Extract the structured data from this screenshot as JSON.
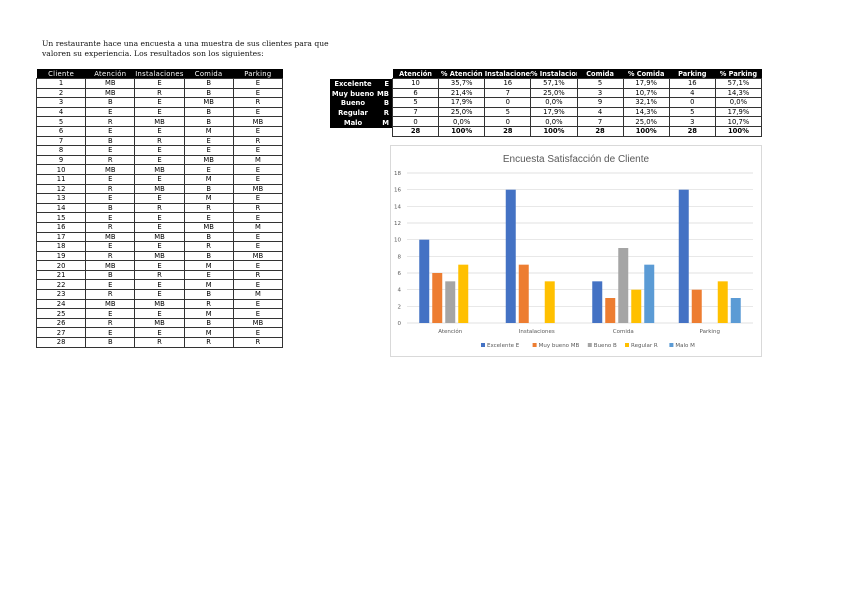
{
  "intro": "Un restaurante hace una encuesta a una muestra de sus clientes para que valoren su experiencia. Los resultados son los siguientes:",
  "survey": {
    "headers": [
      "Cliente",
      "Atención",
      "Instalaciones",
      "Comida",
      "Parking"
    ],
    "rows": [
      [
        "1",
        "MB",
        "E",
        "B",
        "E"
      ],
      [
        "2",
        "MB",
        "R",
        "B",
        "E"
      ],
      [
        "3",
        "B",
        "E",
        "MB",
        "R"
      ],
      [
        "4",
        "E",
        "E",
        "B",
        "E"
      ],
      [
        "5",
        "R",
        "MB",
        "B",
        "MB"
      ],
      [
        "6",
        "E",
        "E",
        "M",
        "E"
      ],
      [
        "7",
        "B",
        "R",
        "E",
        "R"
      ],
      [
        "8",
        "E",
        "E",
        "E",
        "E"
      ],
      [
        "9",
        "R",
        "E",
        "MB",
        "M"
      ],
      [
        "10",
        "MB",
        "MB",
        "E",
        "E"
      ],
      [
        "11",
        "E",
        "E",
        "M",
        "E"
      ],
      [
        "12",
        "R",
        "MB",
        "B",
        "MB"
      ],
      [
        "13",
        "E",
        "E",
        "M",
        "E"
      ],
      [
        "14",
        "B",
        "R",
        "R",
        "R"
      ],
      [
        "15",
        "E",
        "E",
        "E",
        "E"
      ],
      [
        "16",
        "R",
        "E",
        "MB",
        "M"
      ],
      [
        "17",
        "MB",
        "MB",
        "B",
        "E"
      ],
      [
        "18",
        "E",
        "E",
        "R",
        "E"
      ],
      [
        "19",
        "R",
        "MB",
        "B",
        "MB"
      ],
      [
        "20",
        "MB",
        "E",
        "M",
        "E"
      ],
      [
        "21",
        "B",
        "R",
        "E",
        "R"
      ],
      [
        "22",
        "E",
        "E",
        "M",
        "E"
      ],
      [
        "23",
        "R",
        "E",
        "B",
        "M"
      ],
      [
        "24",
        "MB",
        "MB",
        "R",
        "E"
      ],
      [
        "25",
        "E",
        "E",
        "M",
        "E"
      ],
      [
        "26",
        "R",
        "MB",
        "B",
        "MB"
      ],
      [
        "27",
        "E",
        "E",
        "M",
        "E"
      ],
      [
        "28",
        "B",
        "R",
        "R",
        "R"
      ]
    ]
  },
  "summary": {
    "labels": [
      [
        "Excelente",
        "E"
      ],
      [
        "Muy bueno",
        "MB"
      ],
      [
        "Bueno",
        "B"
      ],
      [
        "Regular",
        "R"
      ],
      [
        "Malo",
        "M"
      ]
    ],
    "headers": [
      "Atención",
      "% Atención",
      "Instalaciones",
      "% Instalaciones",
      "Comida",
      "% Comida",
      "Parking",
      "% Parking"
    ],
    "rows": [
      [
        "10",
        "35,7%",
        "16",
        "57,1%",
        "5",
        "17,9%",
        "16",
        "57,1%"
      ],
      [
        "6",
        "21,4%",
        "7",
        "25,0%",
        "3",
        "10,7%",
        "4",
        "14,3%"
      ],
      [
        "5",
        "17,9%",
        "0",
        "0,0%",
        "9",
        "32,1%",
        "0",
        "0,0%"
      ],
      [
        "7",
        "25,0%",
        "5",
        "17,9%",
        "4",
        "14,3%",
        "5",
        "17,9%"
      ],
      [
        "0",
        "0,0%",
        "0",
        "0,0%",
        "7",
        "25,0%",
        "3",
        "10,7%"
      ]
    ],
    "totals": [
      "28",
      "100%",
      "28",
      "100%",
      "28",
      "100%",
      "28",
      "100%"
    ]
  },
  "chart_data": {
    "type": "bar",
    "title": "Encuesta Satisfacción de Cliente",
    "categories": [
      "Atención",
      "Instalaciones",
      "Comida",
      "Parking"
    ],
    "ylim": [
      0,
      18
    ],
    "yticks": [
      0,
      2,
      4,
      6,
      8,
      10,
      12,
      14,
      16,
      18
    ],
    "grid": true,
    "legend": "bottom",
    "series": [
      {
        "name": "Excelente E",
        "color": "#4472c4",
        "values": [
          10,
          16,
          5,
          16
        ]
      },
      {
        "name": "Muy bueno MB",
        "color": "#ed7d31",
        "values": [
          6,
          7,
          3,
          4
        ]
      },
      {
        "name": "Bueno B",
        "color": "#a5a5a5",
        "values": [
          5,
          0,
          9,
          0
        ]
      },
      {
        "name": "Regular R",
        "color": "#ffc000",
        "values": [
          7,
          5,
          4,
          5
        ]
      },
      {
        "name": "Malo M",
        "color": "#5b9bd5",
        "values": [
          0,
          0,
          7,
          3
        ]
      }
    ]
  }
}
